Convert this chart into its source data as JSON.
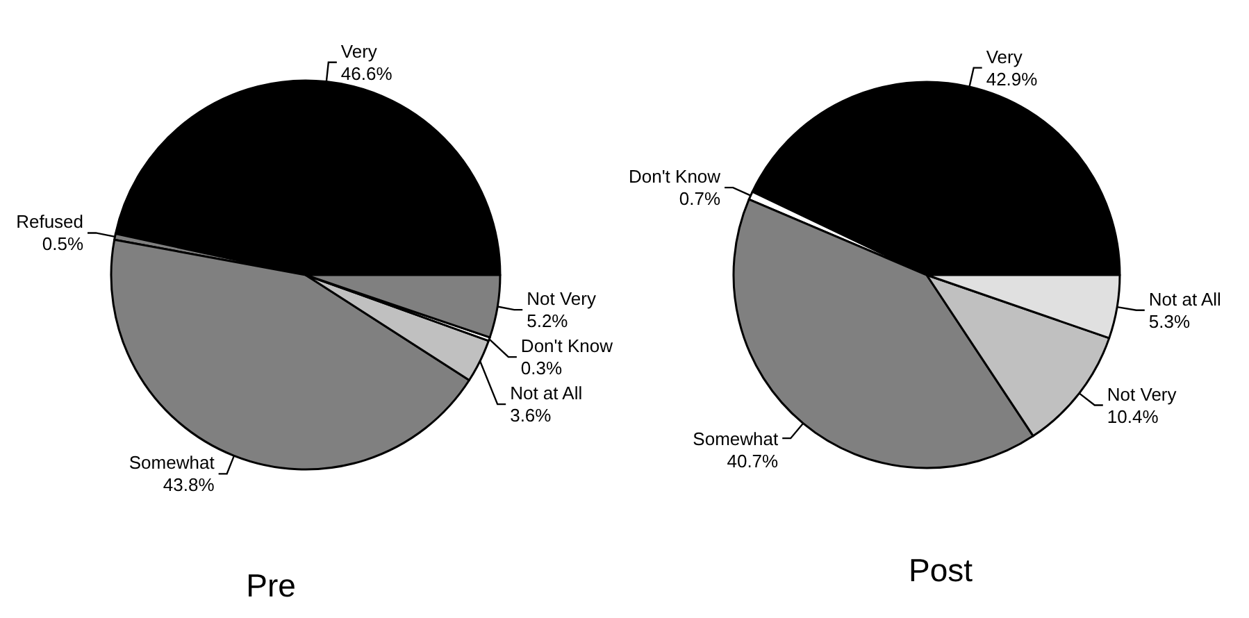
{
  "chart_data": [
    {
      "type": "pie",
      "title": "Pre",
      "categories": [
        "Very",
        "Refused",
        "Somewhat",
        "Not at All",
        "Don't Know",
        "Not Very"
      ],
      "values": [
        46.6,
        0.5,
        43.8,
        3.6,
        0.3,
        5.2
      ],
      "value_labels": [
        "46.6%",
        "0.5%",
        "43.8%",
        "3.6%",
        "0.3%",
        "5.2%"
      ],
      "colors": [
        "#000000",
        "#808080",
        "#808080",
        "#c0c0c0",
        "#ffffff",
        "#808080"
      ]
    },
    {
      "type": "pie",
      "title": "Post",
      "categories": [
        "Very",
        "Don't Know",
        "Somewhat",
        "Not Very",
        "Not at All"
      ],
      "values": [
        42.9,
        0.7,
        40.7,
        10.4,
        5.3
      ],
      "value_labels": [
        "42.9%",
        "0.7%",
        "40.7%",
        "10.4%",
        "5.3%"
      ],
      "colors": [
        "#000000",
        "#ffffff",
        "#808080",
        "#c0c0c0",
        "#e0e0e0"
      ]
    }
  ]
}
